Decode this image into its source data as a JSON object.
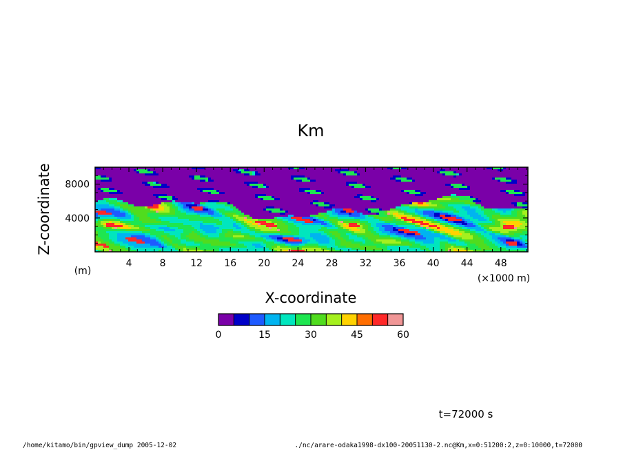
{
  "chart_data": {
    "type": "heatmap",
    "title": "Km",
    "xlabel": "X-coordinate",
    "ylabel": "Z-coordinate",
    "x_unit": "(×1000 m)",
    "y_unit": "(m)",
    "xlim": [
      0,
      51.2
    ],
    "ylim": [
      0,
      10000
    ],
    "x_ticks": [
      4,
      8,
      12,
      16,
      20,
      24,
      28,
      32,
      36,
      40,
      44,
      48
    ],
    "y_ticks": [
      4000,
      8000
    ],
    "colorbar": {
      "min": 0,
      "max": 60,
      "step": 5,
      "tick_values": [
        0,
        15,
        30,
        45,
        60
      ],
      "colors": [
        "#7a00a8",
        "#0000c8",
        "#1e5aff",
        "#00b4f0",
        "#00e6be",
        "#1ee650",
        "#50dc1e",
        "#a5f01e",
        "#ffd200",
        "#ff6e00",
        "#ff2828",
        "#f09696"
      ]
    },
    "annotation": "t=72000 s"
  },
  "footer": {
    "left": "/home/kitamo/bin/gpview_dump  2005-12-02",
    "right": "./nc/arare-odaka1998-dx100-20051130-2.nc@Km,x=0:51200:2,z=0:10000,t=72000"
  }
}
